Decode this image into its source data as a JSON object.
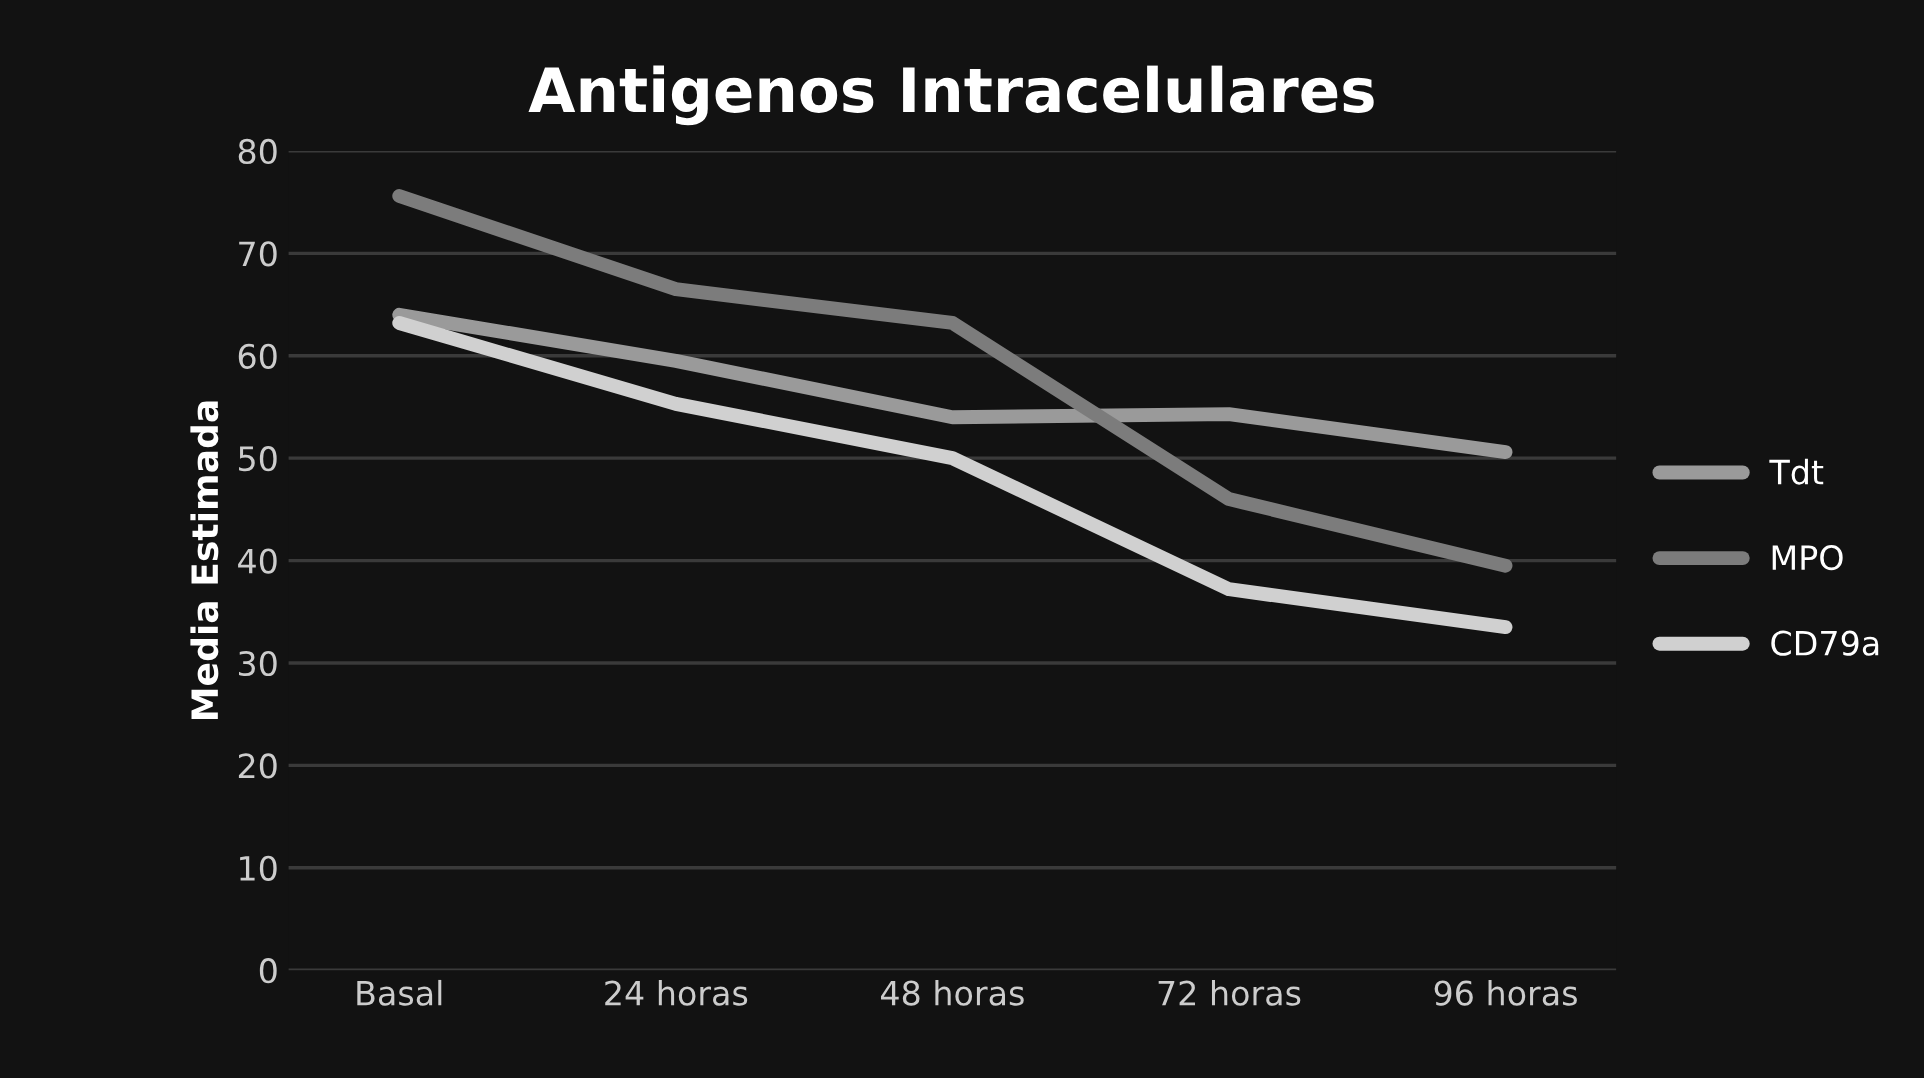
{
  "chart_data": {
    "type": "line",
    "title": "Antigenos Intracelulares",
    "ylabel": "Media Estimada",
    "categories": [
      "Basal",
      "24 horas",
      "48 horas",
      "72 horas",
      "96 horas"
    ],
    "series": [
      {
        "name": "Tdt",
        "color": "#9a9a9a",
        "values": [
          64,
          59.5,
          54,
          54.3,
          50.6
        ]
      },
      {
        "name": "MPO",
        "color": "#7c7c7c",
        "values": [
          75.6,
          66.5,
          63.2,
          46,
          39.5
        ]
      },
      {
        "name": "CD79a",
        "color": "#d0d0d0",
        "values": [
          63.2,
          55.3,
          50,
          37.2,
          33.5
        ]
      }
    ],
    "ylim": [
      0,
      80
    ],
    "yticks": [
      0,
      10,
      20,
      30,
      40,
      50,
      60,
      70,
      80
    ],
    "grid": "y",
    "legend": "right",
    "marker": "none",
    "line_style": "solid"
  }
}
